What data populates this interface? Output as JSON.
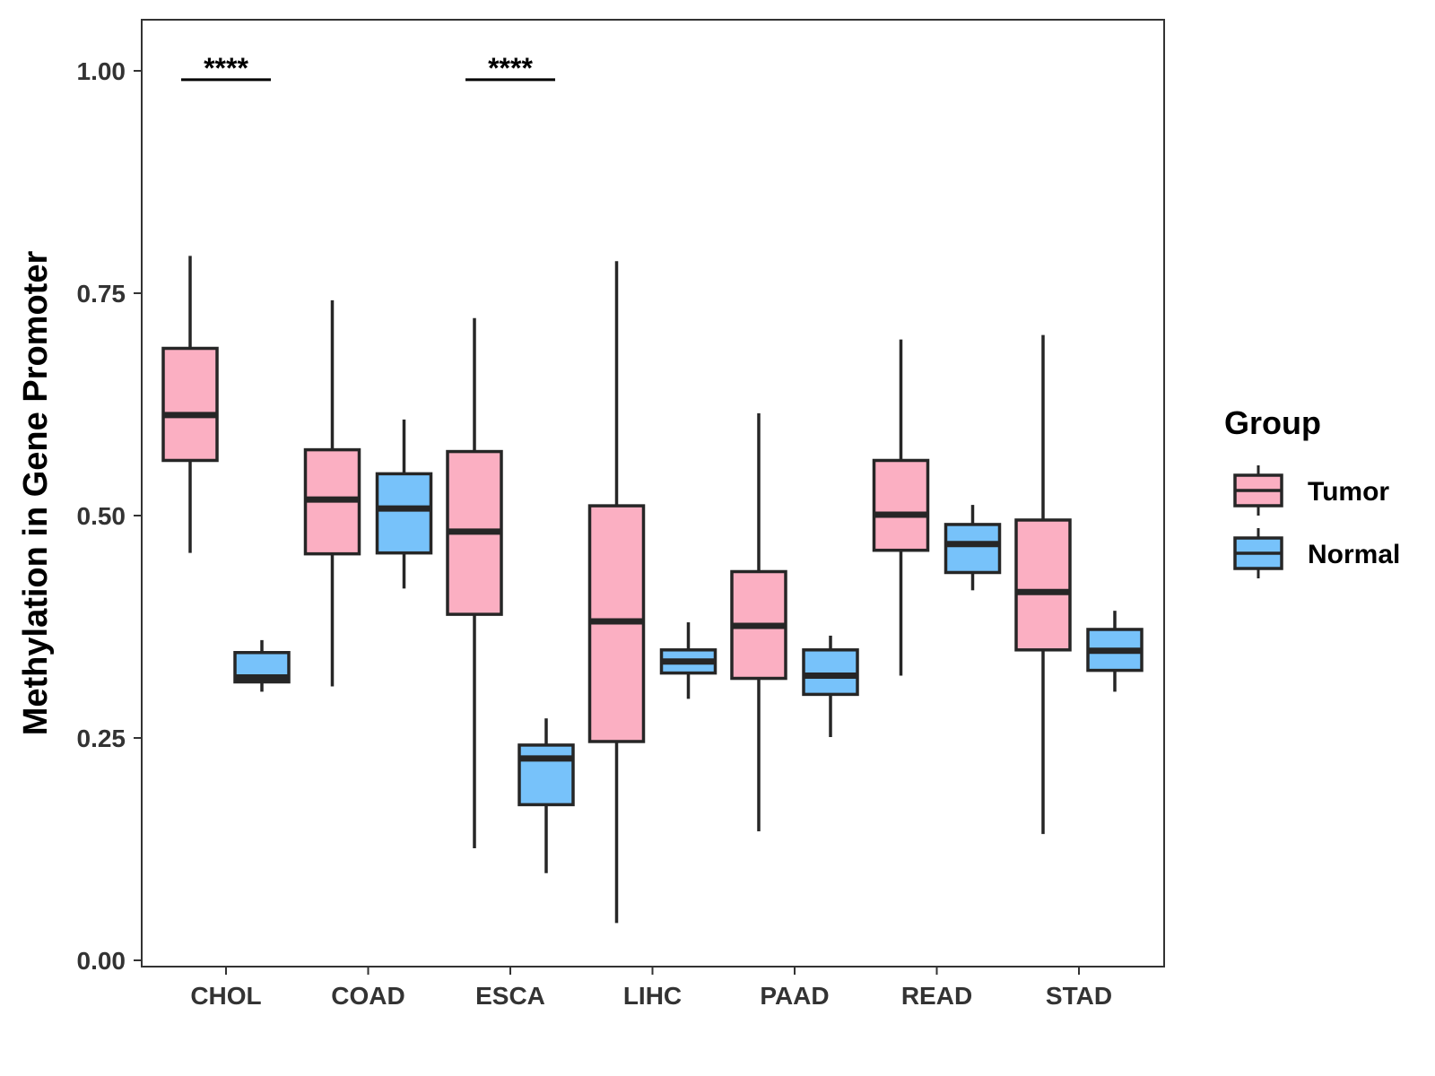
{
  "colors": {
    "tumor": "#FBAFC2",
    "normal": "#77C2FA",
    "outline": "#262626",
    "panel_border": "#333333"
  },
  "chart_data": {
    "type": "boxplot",
    "title": "",
    "xlabel": "",
    "ylabel": "Methylation in Gene Promoter",
    "ylim": [
      -0.01,
      1.06
    ],
    "yticks": [
      0,
      0.25,
      0.5,
      0.75,
      1.0
    ],
    "ytick_labels": [
      "0.00",
      "0.25",
      "0.50",
      "0.75",
      "1.00"
    ],
    "grid": false,
    "categories": [
      "CHOL",
      "COAD",
      "ESCA",
      "LIHC",
      "PAAD",
      "READ",
      "STAD"
    ],
    "legend": {
      "title": "Group",
      "position": "right",
      "entries": [
        "Tumor",
        "Normal"
      ]
    },
    "series": [
      {
        "name": "Tumor",
        "boxes": [
          {
            "min": 0.458,
            "q1": 0.562,
            "median": 0.613,
            "q3": 0.688,
            "max": 0.792
          },
          {
            "min": 0.308,
            "q1": 0.457,
            "median": 0.518,
            "q3": 0.574,
            "max": 0.742
          },
          {
            "min": 0.126,
            "q1": 0.389,
            "median": 0.482,
            "q3": 0.572,
            "max": 0.722
          },
          {
            "min": 0.042,
            "q1": 0.246,
            "median": 0.381,
            "q3": 0.511,
            "max": 0.786
          },
          {
            "min": 0.145,
            "q1": 0.317,
            "median": 0.376,
            "q3": 0.437,
            "max": 0.615
          },
          {
            "min": 0.32,
            "q1": 0.461,
            "median": 0.501,
            "q3": 0.562,
            "max": 0.698
          },
          {
            "min": 0.142,
            "q1": 0.349,
            "median": 0.414,
            "q3": 0.495,
            "max": 0.703
          }
        ]
      },
      {
        "name": "Normal",
        "boxes": [
          {
            "min": 0.302,
            "q1": 0.313,
            "median": 0.318,
            "q3": 0.346,
            "max": 0.36
          },
          {
            "min": 0.418,
            "q1": 0.458,
            "median": 0.508,
            "q3": 0.547,
            "max": 0.608
          },
          {
            "min": 0.098,
            "q1": 0.175,
            "median": 0.227,
            "q3": 0.242,
            "max": 0.272
          },
          {
            "min": 0.294,
            "q1": 0.323,
            "median": 0.336,
            "q3": 0.349,
            "max": 0.38
          },
          {
            "min": 0.251,
            "q1": 0.299,
            "median": 0.32,
            "q3": 0.349,
            "max": 0.365
          },
          {
            "min": 0.416,
            "q1": 0.436,
            "median": 0.468,
            "q3": 0.49,
            "max": 0.512
          },
          {
            "min": 0.302,
            "q1": 0.326,
            "median": 0.348,
            "q3": 0.372,
            "max": 0.393
          }
        ]
      }
    ],
    "annotations": [
      {
        "category": "CHOL",
        "text": "****",
        "y": 0.99
      },
      {
        "category": "ESCA",
        "text": "****",
        "y": 0.99
      }
    ]
  }
}
